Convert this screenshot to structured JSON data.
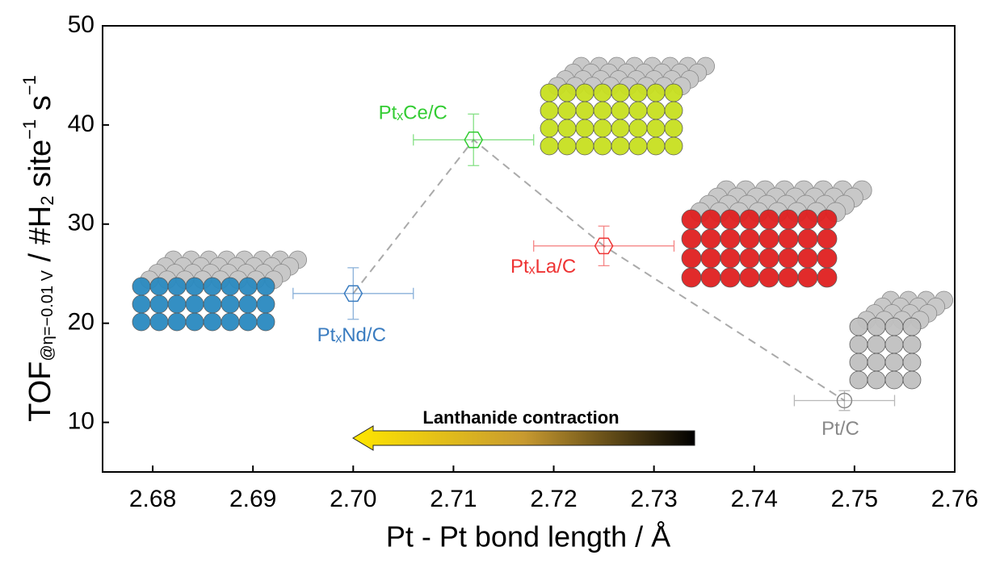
{
  "chart_data": {
    "type": "scatter",
    "xlabel": "Pt - Pt bond length / Å",
    "ylabel": {
      "main": "TOF",
      "sub": "@η=−0.01 V",
      "rest": " / #H",
      "sub2": "2",
      "rest2": " site",
      "sup": "−1",
      "rest3": " s",
      "sup2": "−1"
    },
    "xlim": [
      2.675,
      2.76
    ],
    "xticks": [
      2.68,
      2.69,
      {
        "value": 2.7,
        "label": "2.70"
      },
      2.71,
      2.72,
      2.73,
      2.74,
      2.75,
      2.76
    ],
    "ylim": [
      5,
      50
    ],
    "yticks": [
      10,
      20,
      30,
      40,
      50
    ],
    "annotation": "Lanthanide contraction",
    "series": [
      {
        "name": "PtₓNd/C",
        "color": "#3a7cc0",
        "marker": "hexagon",
        "x": [
          2.7
        ],
        "y": [
          23
        ],
        "xerr": [
          0.006
        ],
        "yerr": [
          2.6
        ]
      },
      {
        "name": "PtₓCe/C",
        "color": "#33cc33",
        "marker": "hexagon",
        "x": [
          2.712
        ],
        "y": [
          38.5
        ],
        "xerr": [
          0.006
        ],
        "yerr": [
          2.6
        ]
      },
      {
        "name": "PtₓLa/C",
        "color": "#ee3333",
        "marker": "hexagon",
        "x": [
          2.725
        ],
        "y": [
          27.8
        ],
        "xerr": [
          0.007
        ],
        "yerr": [
          2
        ]
      },
      {
        "name": "Pt/C",
        "color": "#888888",
        "marker": "circle",
        "x": [
          2.749
        ],
        "y": [
          12.2
        ],
        "xerr": [
          0.005
        ],
        "yerr": [
          1
        ]
      }
    ],
    "trend_color": "#aaaaaa"
  }
}
